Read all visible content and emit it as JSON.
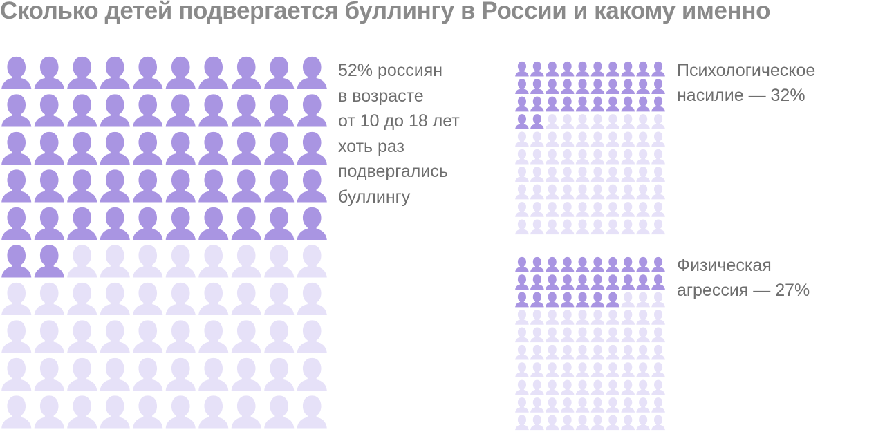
{
  "title": "Сколько детей подвергается буллингу в России и какому именно",
  "colors": {
    "filled": "#a995e2",
    "empty": "#e6e1f8",
    "title": "#8a8a8a",
    "text": "#6e6e6e"
  },
  "chart_data": [
    {
      "type": "waffle",
      "title": "",
      "total": 100,
      "columns": 10,
      "value": 52,
      "unit": "%",
      "icon": "person-icon",
      "caption_lines": [
        "52% россиян",
        "в возрасте",
        "от 10 до 18 лет",
        "хоть раз",
        "подвергались",
        "буллингу"
      ]
    },
    {
      "type": "waffle",
      "title": "",
      "total": 100,
      "columns": 10,
      "value": 32,
      "unit": "%",
      "icon": "person-icon",
      "caption_lines": [
        "Психологическое",
        "насилие — 32%"
      ]
    },
    {
      "type": "waffle",
      "title": "",
      "total": 100,
      "columns": 10,
      "value": 27,
      "unit": "%",
      "icon": "person-icon",
      "caption_lines": [
        "Физическая",
        "агрессия — 27%"
      ]
    }
  ]
}
